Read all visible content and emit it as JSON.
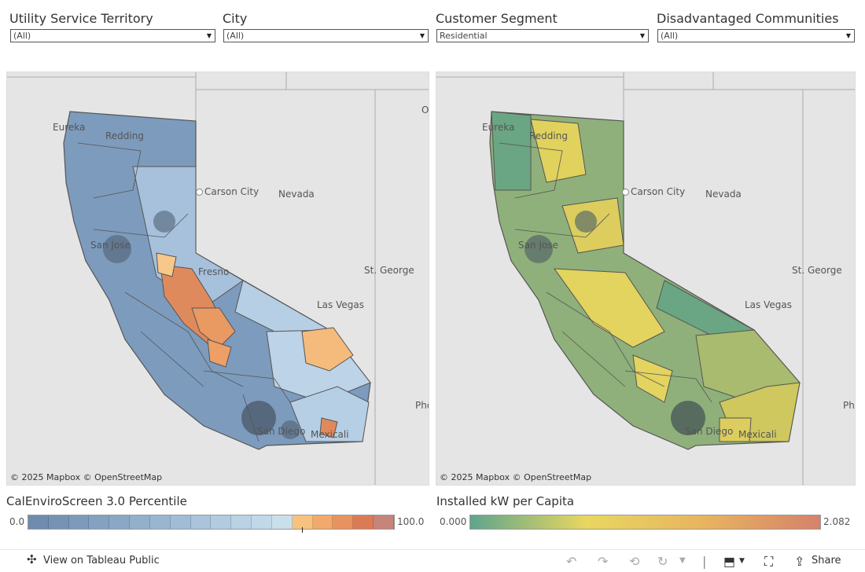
{
  "filters": [
    {
      "label": "Utility Service Territory",
      "value": "(All)"
    },
    {
      "label": "City",
      "value": "(All)"
    },
    {
      "label": "Customer Segment",
      "value": "Residential"
    },
    {
      "label": "Disadvantaged Communities",
      "value": "(All)"
    }
  ],
  "maps": {
    "left": {
      "labels": {
        "eureka": "Eureka",
        "redding": "Redding",
        "carson_city": "Carson City",
        "nevada": "Nevada",
        "san_jose": "San Jose",
        "fresno": "Fresno",
        "st_george": "St. George",
        "las_vegas": "Las Vegas",
        "phoenix": "Pho",
        "san_diego": "San Diego",
        "mexicali": "Mexicali",
        "ogden": "O"
      },
      "copyright": "© 2025 Mapbox  © OpenStreetMap"
    },
    "right": {
      "labels": {
        "eureka": "Eureka",
        "redding": "Redding",
        "carson_city": "Carson City",
        "nevada": "Nevada",
        "san_jose": "San Jose",
        "st_george": "St. George",
        "las_vegas": "Las Vegas",
        "phoenix": "Phe",
        "san_diego": "San Diego",
        "mexicali": "Mexicali"
      },
      "copyright": "© 2025 Mapbox  © OpenStreetMap"
    }
  },
  "legend_left": {
    "title": "CalEnviroScreen 3.0 Percentile",
    "min": "0.0",
    "max": "100.0",
    "colors": [
      "#6e8cad",
      "#7593b3",
      "#7c9aba",
      "#83a1c0",
      "#8aa8c6",
      "#92afcc",
      "#99b6d1",
      "#a1bdd6",
      "#a9c4db",
      "#b1cbe0",
      "#b9d2e4",
      "#c1d8e8",
      "#cadfec",
      "#f7c27e",
      "#f1a96e",
      "#e7925f",
      "#db7b55",
      "#c6847a"
    ]
  },
  "legend_right": {
    "title": "Installed kW per Capita",
    "min": "0.000",
    "max": "2.082",
    "colors": [
      "#5fa58c",
      "#e8d760",
      "#e8b460",
      "#d5826a"
    ]
  },
  "footer": {
    "view_link": "View on Tableau Public",
    "share": "Share"
  }
}
